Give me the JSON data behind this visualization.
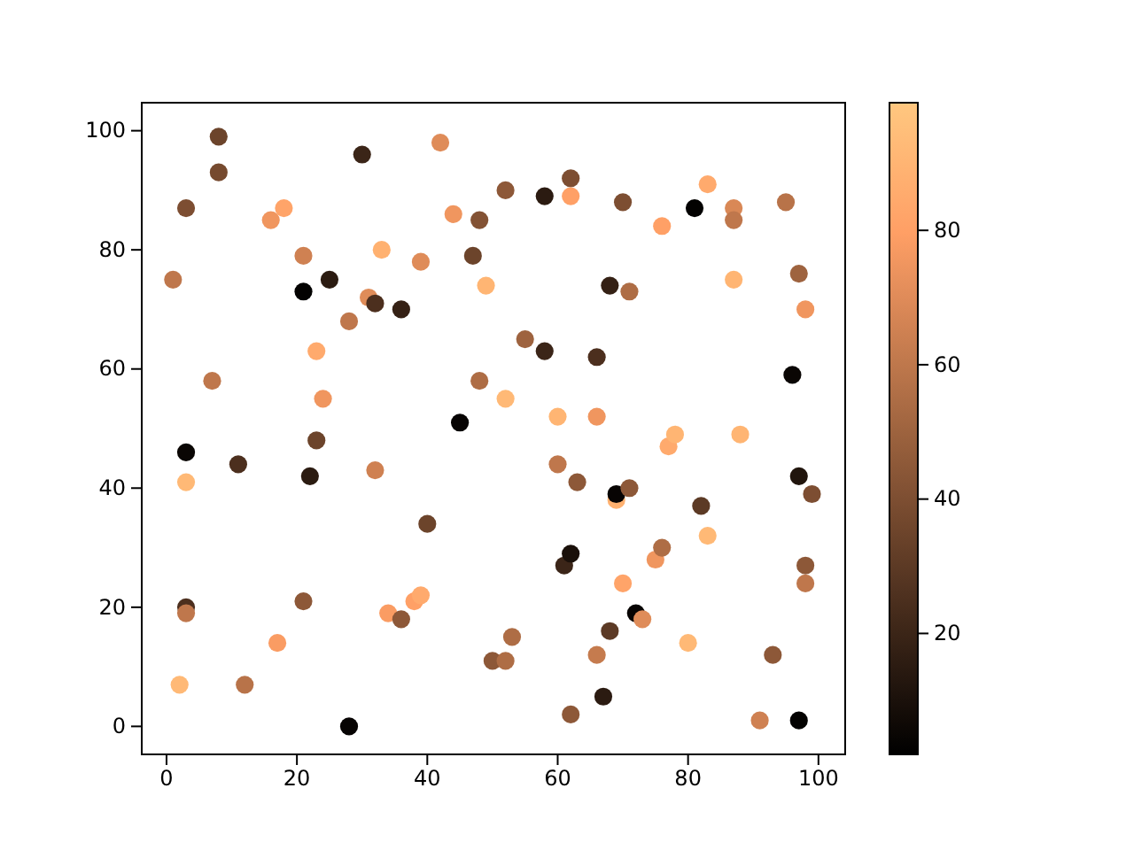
{
  "chart_data": {
    "type": "scatter",
    "xlim": [
      -3.8,
      104.1
    ],
    "ylim": [
      -4.7,
      104.7
    ],
    "xticks": [
      0,
      20,
      40,
      60,
      80,
      100
    ],
    "yticks": [
      0,
      20,
      40,
      60,
      80,
      100
    ],
    "clim": [
      2,
      99
    ],
    "cticks": [
      20,
      40,
      60,
      80
    ],
    "marker": "circle",
    "grid": false,
    "x": [
      1,
      2,
      3,
      3,
      3,
      3,
      3,
      7,
      8,
      8,
      11,
      12,
      16,
      17,
      18,
      21,
      21,
      21,
      22,
      23,
      23,
      24,
      25,
      28,
      28,
      30,
      31,
      32,
      32,
      33,
      34,
      36,
      36,
      38,
      39,
      39,
      40,
      42,
      44,
      45,
      47,
      48,
      48,
      49,
      50,
      52,
      52,
      52,
      53,
      55,
      58,
      58,
      60,
      60,
      61,
      62,
      62,
      62,
      62,
      63,
      66,
      66,
      66,
      67,
      68,
      68,
      69,
      69,
      70,
      70,
      71,
      71,
      72,
      73,
      75,
      76,
      76,
      77,
      78,
      80,
      81,
      82,
      83,
      83,
      87,
      87,
      87,
      88,
      91,
      93,
      95,
      96,
      97,
      97,
      97,
      98,
      98,
      98,
      99
    ],
    "values": [
      75,
      7,
      87,
      46,
      41,
      20,
      19,
      58,
      99,
      93,
      44,
      7,
      85,
      14,
      87,
      79,
      73,
      21,
      42,
      63,
      48,
      55,
      75,
      68,
      0,
      96,
      72,
      71,
      43,
      80,
      19,
      18,
      70,
      21,
      22,
      78,
      34,
      98,
      86,
      51,
      79,
      85,
      58,
      74,
      11,
      11,
      90,
      55,
      15,
      65,
      89,
      63,
      52,
      44,
      27,
      29,
      92,
      89,
      2,
      41,
      52,
      62,
      12,
      5,
      74,
      16,
      38,
      39,
      24,
      88,
      73,
      40,
      19,
      18,
      28,
      84,
      30,
      47,
      49,
      14,
      87,
      37,
      32,
      91,
      87,
      85,
      75,
      49,
      1,
      12,
      88,
      59,
      76,
      42,
      1,
      70,
      27,
      24,
      39
    ],
    "cvalues": [
      60,
      92,
      40,
      5,
      92,
      25,
      60,
      60,
      35,
      38,
      25,
      58,
      75,
      78,
      82,
      65,
      3,
      45,
      15,
      85,
      35,
      75,
      15,
      60,
      4,
      20,
      70,
      25,
      65,
      88,
      78,
      45,
      18,
      80,
      85,
      70,
      35,
      70,
      75,
      4,
      35,
      42,
      55,
      90,
      45,
      55,
      45,
      92,
      55,
      50,
      15,
      20,
      90,
      60,
      20,
      10,
      40,
      80,
      45,
      45,
      75,
      25,
      62,
      15,
      18,
      30,
      88,
      4,
      82,
      40,
      55,
      45,
      4,
      70,
      75,
      80,
      55,
      85,
      90,
      92,
      3,
      30,
      92,
      85,
      68,
      60,
      90,
      90,
      65,
      45,
      58,
      5,
      50,
      12,
      3,
      75,
      45,
      60,
      40
    ]
  }
}
